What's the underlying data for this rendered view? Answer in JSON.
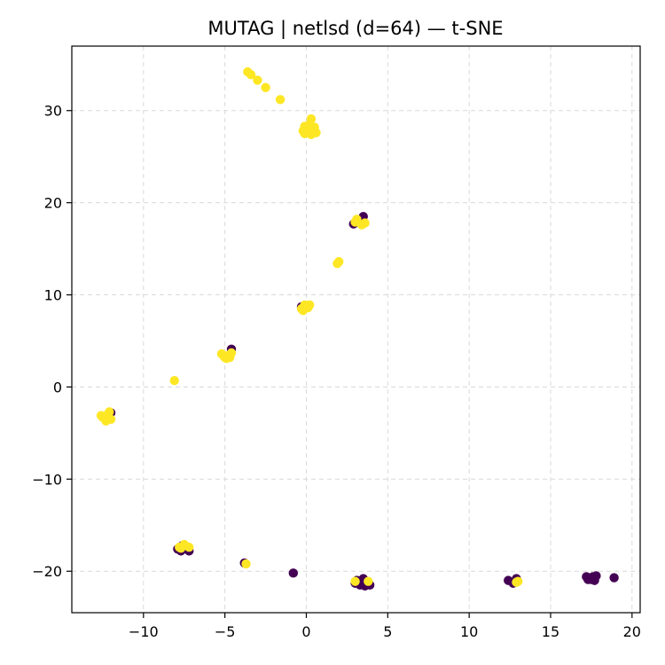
{
  "chart_data": {
    "type": "scatter",
    "title": "MUTAG | netlsd (d=64) — t-SNE",
    "xlabel": "",
    "ylabel": "",
    "xlim": [
      -14.4,
      20.5
    ],
    "ylim": [
      -24.5,
      37
    ],
    "xticks": [
      -10,
      -5,
      0,
      5,
      10,
      15,
      20
    ],
    "yticks": [
      -20,
      -10,
      0,
      10,
      20,
      30
    ],
    "xtick_labels": [
      "−10",
      "−5",
      "0",
      "5",
      "10",
      "15",
      "20"
    ],
    "ytick_labels": [
      "−20",
      "−10",
      "0",
      "10",
      "20",
      "30"
    ],
    "grid": true,
    "colors": {
      "class_0": "#440154",
      "class_1": "#fde725"
    },
    "series": [
      {
        "color": "#440154",
        "points": [
          [
            -12.0,
            -2.8
          ],
          [
            -4.6,
            4.1
          ],
          [
            -0.3,
            8.7
          ],
          [
            2.9,
            17.7
          ],
          [
            3.5,
            18.5
          ],
          [
            -7.6,
            -17.2
          ],
          [
            -7.9,
            -17.6
          ],
          [
            -7.2,
            -17.8
          ],
          [
            -7.7,
            -17.8
          ],
          [
            -3.8,
            -19.1
          ],
          [
            -0.8,
            -20.2
          ],
          [
            3.0,
            -21.3
          ],
          [
            3.3,
            -21.5
          ],
          [
            3.5,
            -20.8
          ],
          [
            3.7,
            -21.2
          ],
          [
            3.9,
            -21.5
          ],
          [
            3.1,
            -21.0
          ],
          [
            3.6,
            -21.6
          ],
          [
            12.4,
            -21.0
          ],
          [
            12.7,
            -21.3
          ],
          [
            12.9,
            -20.8
          ],
          [
            17.2,
            -20.6
          ],
          [
            17.5,
            -20.9
          ],
          [
            17.8,
            -20.5
          ],
          [
            17.3,
            -20.9
          ],
          [
            17.7,
            -21.0
          ],
          [
            17.6,
            -20.6
          ],
          [
            18.9,
            -20.7
          ]
        ]
      },
      {
        "color": "#fde725",
        "points": [
          [
            -3.6,
            34.2
          ],
          [
            -3.4,
            33.9
          ],
          [
            -3.0,
            33.3
          ],
          [
            -2.5,
            32.5
          ],
          [
            -1.6,
            31.2
          ],
          [
            0.3,
            29.1
          ],
          [
            0.2,
            28.5
          ],
          [
            -0.1,
            28.3
          ],
          [
            0.5,
            28.2
          ],
          [
            -0.2,
            27.8
          ],
          [
            0.1,
            27.7
          ],
          [
            0.4,
            27.9
          ],
          [
            0.0,
            28.0
          ],
          [
            0.6,
            27.6
          ],
          [
            -0.1,
            27.5
          ],
          [
            0.3,
            27.4
          ],
          [
            3.1,
            18.2
          ],
          [
            3.4,
            17.6
          ],
          [
            3.6,
            17.8
          ],
          [
            3.0,
            17.9
          ],
          [
            1.9,
            13.4
          ],
          [
            2.0,
            13.6
          ],
          [
            -0.3,
            8.5
          ],
          [
            -0.1,
            8.9
          ],
          [
            0.1,
            8.6
          ],
          [
            0.2,
            8.9
          ],
          [
            -0.2,
            8.3
          ],
          [
            0.0,
            8.7
          ],
          [
            -5.2,
            3.6
          ],
          [
            -5.0,
            3.2
          ],
          [
            -4.8,
            3.4
          ],
          [
            -4.6,
            3.7
          ],
          [
            -4.9,
            3.1
          ],
          [
            -5.1,
            3.4
          ],
          [
            -4.7,
            3.2
          ],
          [
            -8.1,
            0.7
          ],
          [
            -12.6,
            -3.1
          ],
          [
            -12.4,
            -3.4
          ],
          [
            -12.2,
            -3.0
          ],
          [
            -12.0,
            -3.5
          ],
          [
            -12.3,
            -3.7
          ],
          [
            -12.1,
            -2.7
          ],
          [
            -12.5,
            -3.3
          ],
          [
            -7.8,
            -17.4
          ],
          [
            -7.5,
            -17.1
          ],
          [
            -7.2,
            -17.4
          ],
          [
            -7.7,
            -17.5
          ],
          [
            -3.7,
            -19.2
          ],
          [
            3.0,
            -21.1
          ],
          [
            3.8,
            -21.1
          ],
          [
            12.9,
            -21.2
          ],
          [
            13.0,
            -21.1
          ]
        ]
      }
    ]
  }
}
